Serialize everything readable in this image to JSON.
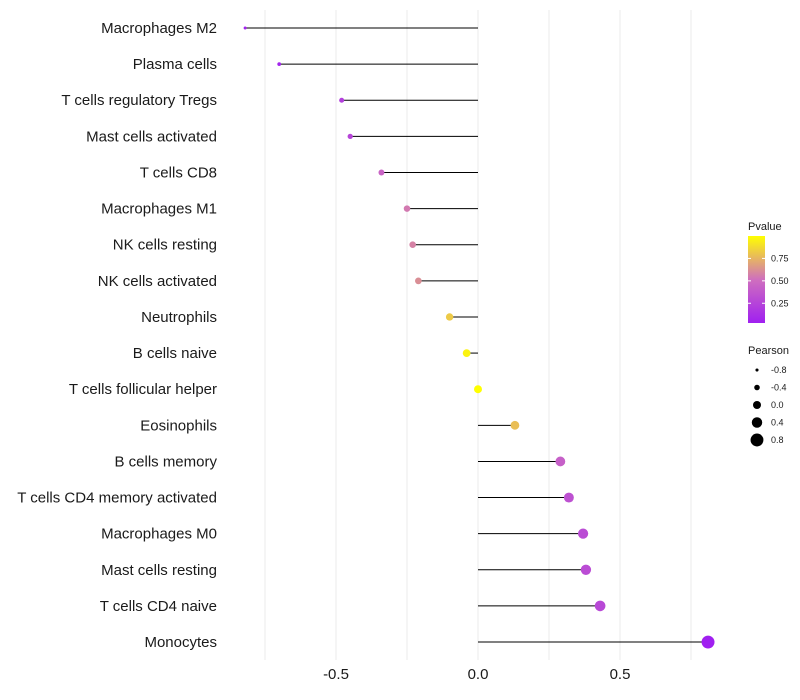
{
  "chart_data": {
    "type": "lollipop",
    "title": "",
    "xlabel": "",
    "ylabel": "",
    "xlim": [
      -0.83,
      0.83
    ],
    "x_ticks": [
      -0.5,
      0.0,
      0.5
    ],
    "x_tick_labels": [
      "-0.5",
      "0.0",
      "0.5"
    ],
    "grid": true,
    "categories": [
      "Macrophages M2",
      "Plasma cells",
      "T cells regulatory  Tregs ",
      "Mast cells activated",
      "T cells CD8",
      "Macrophages M1",
      "NK cells resting",
      "NK cells activated",
      "Neutrophils",
      "B cells naive",
      "T cells follicular helper",
      "Eosinophils",
      "B cells memory",
      "T cells CD4 memory activated",
      "Macrophages M0",
      "Mast cells resting",
      "T cells CD4 naive",
      "Monocytes"
    ],
    "pearson": [
      -0.82,
      -0.7,
      -0.48,
      -0.45,
      -0.34,
      -0.25,
      -0.23,
      -0.21,
      -0.1,
      -0.04,
      0.0,
      0.13,
      0.29,
      0.32,
      0.37,
      0.38,
      0.43,
      0.81
    ],
    "pvalue": [
      0.05,
      0.06,
      0.22,
      0.26,
      0.45,
      0.55,
      0.58,
      0.62,
      0.82,
      0.96,
      1.0,
      0.78,
      0.42,
      0.33,
      0.3,
      0.3,
      0.28,
      0.03
    ],
    "legend": {
      "color_title": "Pvalue",
      "color_ticks": [
        0.25,
        0.5,
        0.75
      ],
      "color_tick_labels": [
        "0.25",
        "0.50",
        "0.75"
      ],
      "color_range": [
        0.03,
        1.0
      ],
      "color_low": "#a020f0",
      "color_mid": "#cf6fbe",
      "color_high": "#ffff00",
      "size_title": "Pearson",
      "size_values": [
        -0.8,
        -0.4,
        0.0,
        0.4,
        0.8
      ],
      "size_labels": [
        "-0.8",
        "-0.4",
        "0.0",
        "0.4",
        "0.8"
      ],
      "placement": "right"
    },
    "segment_color": "#000000",
    "grid_color": "#ebebeb"
  }
}
